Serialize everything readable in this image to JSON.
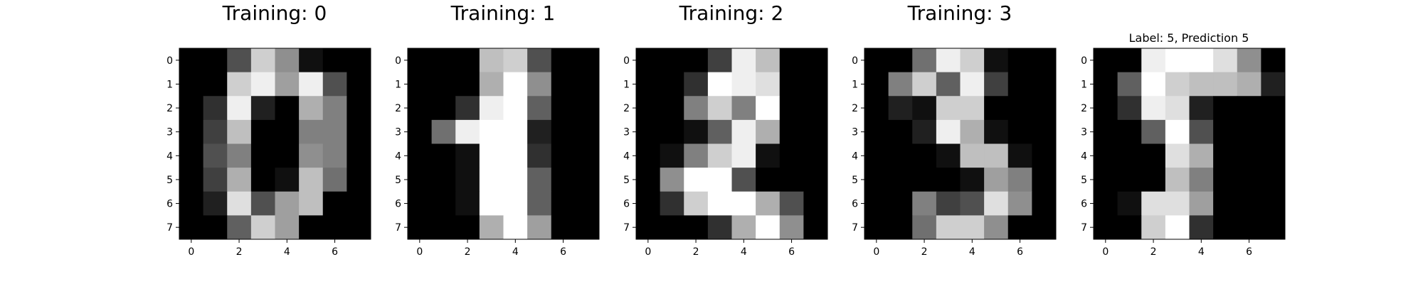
{
  "chart_data": [
    {
      "type": "heatmap",
      "title": "Training: 0",
      "colormap": "gray_r_on_black",
      "xlim": [
        -0.5,
        7.5
      ],
      "ylim": [
        7.5,
        -0.5
      ],
      "xticks": [
        "0",
        "2",
        "4",
        "6"
      ],
      "yticks": [
        "0",
        "1",
        "2",
        "3",
        "4",
        "5",
        "6",
        "7"
      ],
      "grid": false,
      "value_range": [
        0,
        16
      ],
      "values": [
        [
          0,
          0,
          5,
          13,
          9,
          1,
          0,
          0
        ],
        [
          0,
          0,
          13,
          15,
          10,
          15,
          5,
          0
        ],
        [
          0,
          3,
          15,
          2,
          0,
          11,
          8,
          0
        ],
        [
          0,
          4,
          12,
          0,
          0,
          8,
          8,
          0
        ],
        [
          0,
          5,
          8,
          0,
          0,
          9,
          8,
          0
        ],
        [
          0,
          4,
          11,
          0,
          1,
          12,
          7,
          0
        ],
        [
          0,
          2,
          14,
          5,
          10,
          12,
          0,
          0
        ],
        [
          0,
          0,
          6,
          13,
          10,
          0,
          0,
          0
        ]
      ]
    },
    {
      "type": "heatmap",
      "title": "Training: 1",
      "colormap": "gray_r_on_black",
      "xlim": [
        -0.5,
        7.5
      ],
      "ylim": [
        7.5,
        -0.5
      ],
      "xticks": [
        "0",
        "2",
        "4",
        "6"
      ],
      "yticks": [
        "0",
        "1",
        "2",
        "3",
        "4",
        "5",
        "6",
        "7"
      ],
      "grid": false,
      "value_range": [
        0,
        16
      ],
      "values": [
        [
          0,
          0,
          0,
          12,
          13,
          5,
          0,
          0
        ],
        [
          0,
          0,
          0,
          11,
          16,
          9,
          0,
          0
        ],
        [
          0,
          0,
          3,
          15,
          16,
          6,
          0,
          0
        ],
        [
          0,
          7,
          15,
          16,
          16,
          2,
          0,
          0
        ],
        [
          0,
          0,
          1,
          16,
          16,
          3,
          0,
          0
        ],
        [
          0,
          0,
          1,
          16,
          16,
          6,
          0,
          0
        ],
        [
          0,
          0,
          1,
          16,
          16,
          6,
          0,
          0
        ],
        [
          0,
          0,
          0,
          11,
          16,
          10,
          0,
          0
        ]
      ]
    },
    {
      "type": "heatmap",
      "title": "Training: 2",
      "colormap": "gray_r_on_black",
      "xlim": [
        -0.5,
        7.5
      ],
      "ylim": [
        7.5,
        -0.5
      ],
      "xticks": [
        "0",
        "2",
        "4",
        "6"
      ],
      "yticks": [
        "0",
        "1",
        "2",
        "3",
        "4",
        "5",
        "6",
        "7"
      ],
      "grid": false,
      "value_range": [
        0,
        16
      ],
      "values": [
        [
          0,
          0,
          0,
          4,
          15,
          12,
          0,
          0
        ],
        [
          0,
          0,
          3,
          16,
          15,
          14,
          0,
          0
        ],
        [
          0,
          0,
          8,
          13,
          8,
          16,
          0,
          0
        ],
        [
          0,
          0,
          1,
          6,
          15,
          11,
          0,
          0
        ],
        [
          0,
          1,
          8,
          13,
          15,
          1,
          0,
          0
        ],
        [
          0,
          9,
          16,
          16,
          5,
          0,
          0,
          0
        ],
        [
          0,
          3,
          13,
          16,
          16,
          11,
          5,
          0
        ],
        [
          0,
          0,
          0,
          3,
          11,
          16,
          9,
          0
        ]
      ]
    },
    {
      "type": "heatmap",
      "title": "Training: 3",
      "colormap": "gray_r_on_black",
      "xlim": [
        -0.5,
        7.5
      ],
      "ylim": [
        7.5,
        -0.5
      ],
      "xticks": [
        "0",
        "2",
        "4",
        "6"
      ],
      "yticks": [
        "0",
        "1",
        "2",
        "3",
        "4",
        "5",
        "6",
        "7"
      ],
      "grid": false,
      "value_range": [
        0,
        16
      ],
      "values": [
        [
          0,
          0,
          7,
          15,
          13,
          1,
          0,
          0
        ],
        [
          0,
          8,
          13,
          6,
          15,
          4,
          0,
          0
        ],
        [
          0,
          2,
          1,
          13,
          13,
          0,
          0,
          0
        ],
        [
          0,
          0,
          2,
          15,
          11,
          1,
          0,
          0
        ],
        [
          0,
          0,
          0,
          1,
          12,
          12,
          1,
          0
        ],
        [
          0,
          0,
          0,
          0,
          1,
          10,
          8,
          0
        ],
        [
          0,
          0,
          8,
          4,
          5,
          14,
          9,
          0
        ],
        [
          0,
          0,
          7,
          13,
          13,
          9,
          0,
          0
        ]
      ]
    },
    {
      "type": "heatmap",
      "title": "Label: 5, Prediction 5",
      "colormap": "gray_r_on_black",
      "xlim": [
        -0.5,
        7.5
      ],
      "ylim": [
        7.5,
        -0.5
      ],
      "xticks": [
        "0",
        "2",
        "4",
        "6"
      ],
      "yticks": [
        "0",
        "1",
        "2",
        "3",
        "4",
        "5",
        "6",
        "7"
      ],
      "grid": false,
      "value_range": [
        0,
        16
      ],
      "values": [
        [
          0,
          0,
          15,
          16,
          16,
          14,
          9,
          0
        ],
        [
          0,
          6,
          16,
          13,
          12,
          12,
          11,
          2
        ],
        [
          0,
          3,
          15,
          14,
          2,
          0,
          0,
          0
        ],
        [
          0,
          0,
          6,
          16,
          5,
          0,
          0,
          0
        ],
        [
          0,
          0,
          0,
          14,
          11,
          0,
          0,
          0
        ],
        [
          0,
          0,
          0,
          12,
          8,
          0,
          0,
          0
        ],
        [
          0,
          1,
          14,
          14,
          10,
          0,
          0,
          0
        ],
        [
          0,
          0,
          13,
          16,
          3,
          0,
          0,
          0
        ]
      ]
    }
  ]
}
